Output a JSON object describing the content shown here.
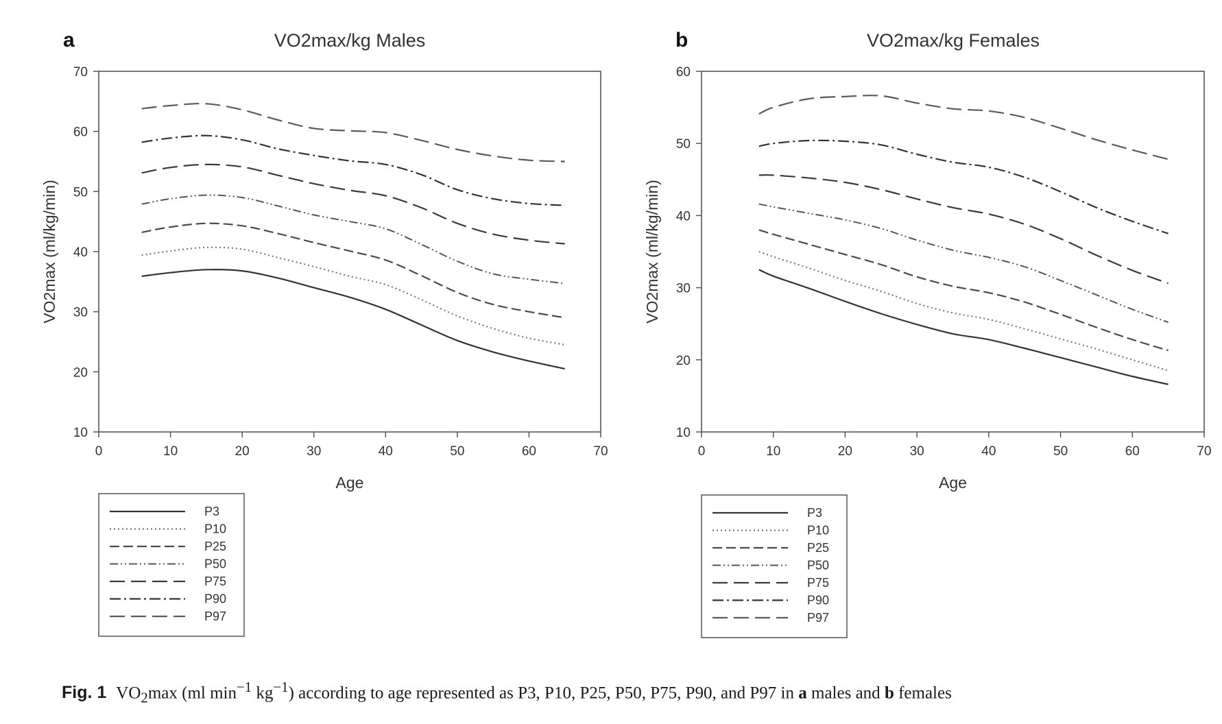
{
  "chart_data": [
    {
      "type": "line",
      "panel": "a",
      "title": "VO2max/kg Males",
      "xlabel": "Age",
      "ylabel": "VO2max (ml/kg/min)",
      "xlim": [
        0,
        70
      ],
      "ylim": [
        10,
        70
      ],
      "xticks": [
        0,
        10,
        20,
        30,
        40,
        50,
        60,
        70
      ],
      "yticks": [
        10,
        20,
        30,
        40,
        50,
        60,
        70
      ],
      "grid": false,
      "legend_position": "below",
      "x": [
        6,
        10,
        15,
        20,
        25,
        30,
        35,
        40,
        45,
        50,
        55,
        60,
        65
      ],
      "series": [
        {
          "name": "P3",
          "style": "solid",
          "values": [
            35.9,
            36.5,
            37.0,
            36.8,
            35.6,
            34.0,
            32.4,
            30.4,
            27.8,
            25.2,
            23.3,
            21.8,
            20.5
          ]
        },
        {
          "name": "P10",
          "style": "dotted",
          "values": [
            39.4,
            40.1,
            40.7,
            40.4,
            39.0,
            37.5,
            35.9,
            34.5,
            32.0,
            29.3,
            27.2,
            25.6,
            24.5
          ]
        },
        {
          "name": "P25",
          "style": "dashed",
          "values": [
            43.2,
            44.1,
            44.7,
            44.3,
            43.0,
            41.5,
            40.1,
            38.6,
            36.0,
            33.2,
            31.2,
            30.0,
            29.0
          ]
        },
        {
          "name": "P50",
          "style": "dash-dot-dot",
          "values": [
            47.9,
            48.8,
            49.4,
            49.0,
            47.6,
            46.1,
            45.0,
            43.8,
            41.2,
            38.4,
            36.3,
            35.4,
            34.7
          ]
        },
        {
          "name": "P75",
          "style": "long-dash",
          "values": [
            53.1,
            54.0,
            54.5,
            54.1,
            52.7,
            51.3,
            50.2,
            49.3,
            47.3,
            44.7,
            42.9,
            41.9,
            41.3
          ]
        },
        {
          "name": "P90",
          "style": "dash-dot",
          "values": [
            58.2,
            58.9,
            59.3,
            58.6,
            57.1,
            56.0,
            55.1,
            54.5,
            52.8,
            50.3,
            48.8,
            48.0,
            47.7
          ]
        },
        {
          "name": "P97",
          "style": "long-dash-gray",
          "values": [
            63.8,
            64.3,
            64.6,
            63.6,
            61.9,
            60.5,
            60.1,
            59.8,
            58.5,
            57.0,
            55.9,
            55.2,
            55.0
          ]
        }
      ]
    },
    {
      "type": "line",
      "panel": "b",
      "title": "VO2max/kg Females",
      "xlabel": "Age",
      "ylabel": "VO2max (ml/kg/min)",
      "xlim": [
        0,
        70
      ],
      "ylim": [
        10,
        60
      ],
      "xticks": [
        0,
        10,
        20,
        30,
        40,
        50,
        60,
        70
      ],
      "yticks": [
        10,
        20,
        30,
        40,
        50,
        60
      ],
      "grid": false,
      "legend_position": "below",
      "x": [
        8,
        10,
        15,
        20,
        25,
        30,
        35,
        40,
        45,
        50,
        55,
        60,
        65
      ],
      "series": [
        {
          "name": "P3",
          "style": "solid",
          "values": [
            32.5,
            31.6,
            29.9,
            28.1,
            26.4,
            24.9,
            23.6,
            22.8,
            21.6,
            20.3,
            19.0,
            17.7,
            16.6
          ]
        },
        {
          "name": "P10",
          "style": "dotted",
          "values": [
            35.0,
            34.3,
            32.7,
            31.0,
            29.5,
            27.8,
            26.5,
            25.6,
            24.3,
            22.9,
            21.5,
            20.0,
            18.5
          ]
        },
        {
          "name": "P25",
          "style": "dashed",
          "values": [
            38.0,
            37.4,
            36.0,
            34.6,
            33.2,
            31.5,
            30.2,
            29.3,
            28.0,
            26.3,
            24.5,
            22.8,
            21.3
          ]
        },
        {
          "name": "P50",
          "style": "dash-dot-dot",
          "values": [
            41.6,
            41.2,
            40.3,
            39.4,
            38.2,
            36.6,
            35.2,
            34.2,
            32.9,
            31.0,
            29.0,
            27.0,
            25.2
          ]
        },
        {
          "name": "P75",
          "style": "long-dash",
          "values": [
            45.6,
            45.6,
            45.2,
            44.6,
            43.6,
            42.3,
            41.1,
            40.2,
            38.8,
            36.8,
            34.5,
            32.4,
            30.6
          ]
        },
        {
          "name": "P90",
          "style": "dash-dot",
          "values": [
            49.6,
            50.0,
            50.4,
            50.3,
            49.8,
            48.5,
            47.4,
            46.7,
            45.3,
            43.3,
            41.1,
            39.2,
            37.5
          ]
        },
        {
          "name": "P97",
          "style": "long-dash-gray",
          "values": [
            54.1,
            55.0,
            56.2,
            56.5,
            56.6,
            55.6,
            54.8,
            54.5,
            53.6,
            52.1,
            50.5,
            49.1,
            47.8
          ]
        }
      ]
    }
  ],
  "caption": {
    "label": "Fig. 1",
    "vo": "VO",
    "sub2": "2",
    "max_units": "max (ml min",
    "sup1": "−1",
    "kg": " kg",
    "sup2": "−1",
    "middle": ") according to age represented as P3, P10, P25, P50, P75, P90, and P97 in ",
    "a": "a",
    "males_and": " males and ",
    "b": "b",
    "females": " females"
  }
}
